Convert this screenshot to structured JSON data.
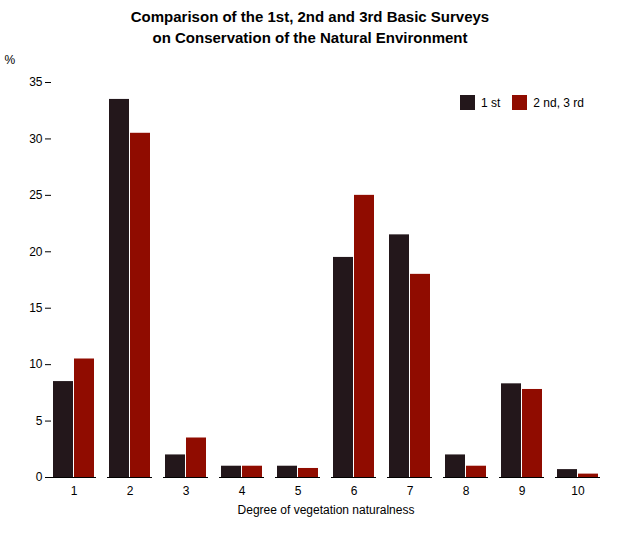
{
  "chart_data": {
    "type": "bar",
    "title": "Comparison of the 1st, 2nd and 3rd Basic Surveys\non Conservation of the Natural Environment",
    "xlabel": "Degree of vegetation naturalness",
    "ylabel": "%",
    "categories": [
      "1",
      "2",
      "3",
      "4",
      "5",
      "6",
      "7",
      "8",
      "9",
      "10"
    ],
    "series": [
      {
        "name": "1 st",
        "values": [
          8.5,
          33.5,
          2.0,
          1.0,
          1.0,
          19.5,
          21.5,
          2.0,
          8.3,
          0.7
        ]
      },
      {
        "name": "2 nd, 3 rd",
        "values": [
          10.5,
          30.5,
          3.5,
          1.0,
          0.8,
          25.0,
          18.0,
          1.0,
          7.8,
          0.3
        ]
      }
    ],
    "ylim": [
      0,
      35
    ],
    "yticks": [
      0,
      5,
      10,
      15,
      20,
      25,
      30,
      35
    ],
    "grid": false,
    "legend": "top-right"
  }
}
